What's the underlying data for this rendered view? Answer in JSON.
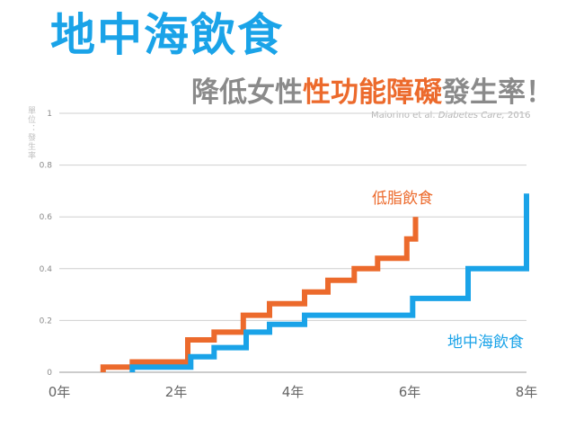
{
  "header": {
    "title": "地中海飲食",
    "subtitle_pre": "降低女性",
    "subtitle_highlight": "性功能障礙",
    "subtitle_post": "發生率！",
    "citation_authors": "Maiorino et al.",
    "citation_journal": "Diabetes Care,",
    "citation_year": "2016",
    "unit_label": "單位：發生率"
  },
  "colors": {
    "title": "#1aa3e8",
    "highlight": "#ec6a2c",
    "mediterranean": "#1aa3e8",
    "lowfat": "#ec6a2c",
    "grid": "#cfcfcf"
  },
  "chart_data": {
    "type": "line",
    "step": true,
    "xlabel": "",
    "ylabel": "單位：發生率",
    "xlim": [
      0,
      8
    ],
    "ylim": [
      0,
      1
    ],
    "xticks": [
      0,
      2,
      4,
      6,
      8
    ],
    "xtick_labels": [
      "0年",
      "2年",
      "4年",
      "6年",
      "8年"
    ],
    "yticks": [
      0,
      0.2,
      0.4,
      0.6,
      0.8,
      1
    ],
    "ytick_labels": [
      "0",
      "0.2",
      "0.4",
      "0.6",
      "0.8",
      "1"
    ],
    "grid": true,
    "series": [
      {
        "name": "低脂飲食",
        "color": "#ec6a2c",
        "points": [
          [
            0.75,
            0
          ],
          [
            0.75,
            0.02
          ],
          [
            1.25,
            0.02
          ],
          [
            1.25,
            0.04
          ],
          [
            2.2,
            0.04
          ],
          [
            2.2,
            0.125
          ],
          [
            2.65,
            0.125
          ],
          [
            2.65,
            0.155
          ],
          [
            3.15,
            0.155
          ],
          [
            3.15,
            0.22
          ],
          [
            3.6,
            0.22
          ],
          [
            3.6,
            0.265
          ],
          [
            4.2,
            0.265
          ],
          [
            4.2,
            0.31
          ],
          [
            4.6,
            0.31
          ],
          [
            4.6,
            0.355
          ],
          [
            5.05,
            0.355
          ],
          [
            5.05,
            0.4
          ],
          [
            5.45,
            0.4
          ],
          [
            5.45,
            0.44
          ],
          [
            5.95,
            0.44
          ],
          [
            5.95,
            0.515
          ],
          [
            6.1,
            0.515
          ],
          [
            6.1,
            0.6
          ]
        ]
      },
      {
        "name": "地中海飲食",
        "color": "#1aa3e8",
        "points": [
          [
            1.25,
            0
          ],
          [
            1.25,
            0.02
          ],
          [
            2.25,
            0.02
          ],
          [
            2.25,
            0.06
          ],
          [
            2.65,
            0.06
          ],
          [
            2.65,
            0.095
          ],
          [
            3.2,
            0.095
          ],
          [
            3.2,
            0.155
          ],
          [
            3.6,
            0.155
          ],
          [
            3.6,
            0.185
          ],
          [
            4.2,
            0.185
          ],
          [
            4.2,
            0.22
          ],
          [
            6.05,
            0.22
          ],
          [
            6.05,
            0.285
          ],
          [
            7.0,
            0.285
          ],
          [
            7.0,
            0.4
          ],
          [
            8.0,
            0.4
          ],
          [
            8.0,
            0.69
          ]
        ]
      }
    ]
  }
}
